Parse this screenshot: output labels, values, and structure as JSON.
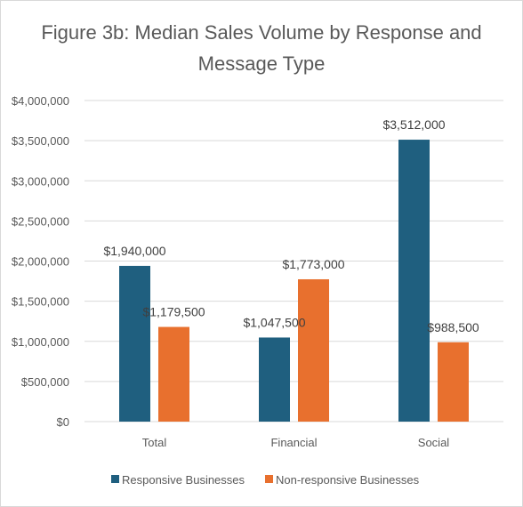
{
  "chart_data": {
    "type": "bar",
    "title_lines": [
      "Figure 3b: Median Sales Volume by Response and",
      "Message Type"
    ],
    "categories": [
      "Total",
      "Financial",
      "Social"
    ],
    "series": [
      {
        "name": "Responsive Businesses",
        "color": "#1f5f7f",
        "values": [
          1940000,
          1047500,
          3512000
        ],
        "labels": [
          "$1,940,000",
          "$1,047,500",
          "$3,512,000"
        ]
      },
      {
        "name": "Non-responsive Businesses",
        "color": "#e8702e",
        "values": [
          1179500,
          1773000,
          988500
        ],
        "labels": [
          "$1,179,500",
          "$1,773,000",
          "$988,500"
        ]
      }
    ],
    "ylim": [
      0,
      4000000
    ],
    "yticks": [
      0,
      500000,
      1000000,
      1500000,
      2000000,
      2500000,
      3000000,
      3500000,
      4000000
    ],
    "ytick_labels": [
      "$0",
      "$500,000",
      "$1,000,000",
      "$1,500,000",
      "$2,000,000",
      "$2,500,000",
      "$3,000,000",
      "$3,500,000",
      "$4,000,000"
    ],
    "grid": true,
    "legend_position": "bottom",
    "gridline_color": "#d9d9d9"
  }
}
